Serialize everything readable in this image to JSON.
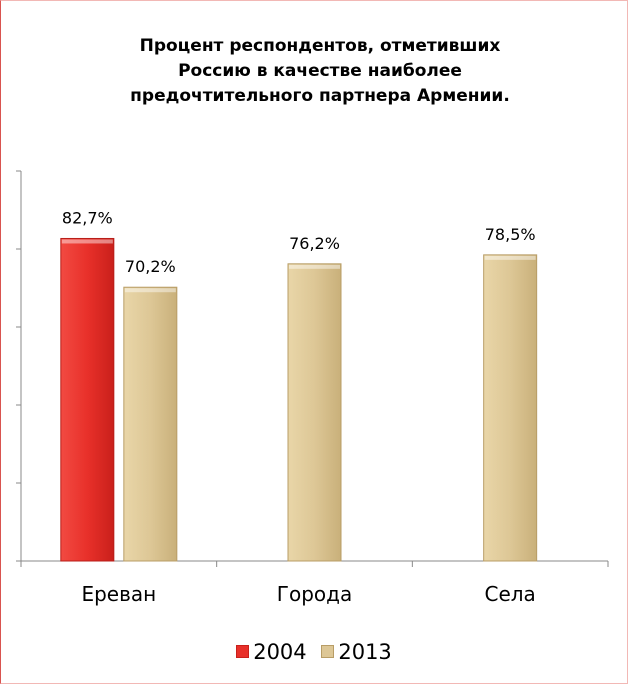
{
  "title": {
    "lines": [
      "Процент респондентов, отметивших",
      "Россию в качестве наиболее",
      "предочтительного партнера Армении."
    ]
  },
  "chart_data": {
    "type": "bar",
    "title": "Процент респондентов, отметивших Россию в качестве наиболее предочтительного партнера Армении.",
    "categories": [
      "Ереван",
      "Города",
      "Села"
    ],
    "series": [
      {
        "name": "2004",
        "color": "#e8302a",
        "values": [
          82.7,
          null,
          null
        ],
        "labels": [
          "82,7%",
          "",
          ""
        ]
      },
      {
        "name": "2013",
        "color": "#ddc796",
        "values": [
          70.2,
          76.2,
          78.5
        ],
        "labels": [
          "70,2%",
          "76,2%",
          "78,5%"
        ]
      }
    ],
    "ylim": [
      0,
      100
    ],
    "y_tick_labels_shown": false,
    "grid": false,
    "legend_position": "bottom"
  }
}
